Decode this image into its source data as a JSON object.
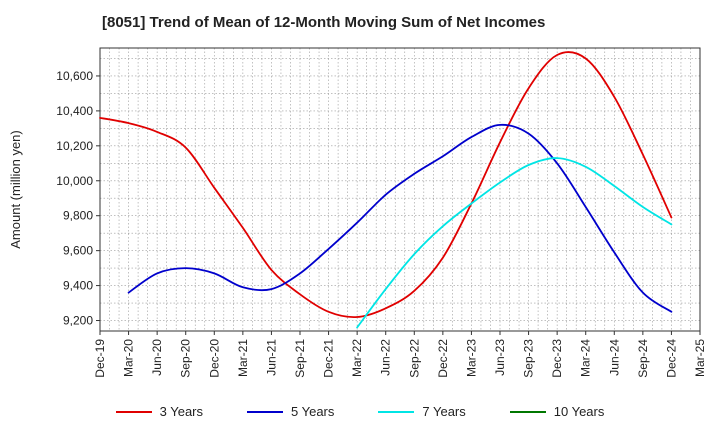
{
  "title": "[8051]  Trend of Mean of 12-Month Moving Sum of Net Incomes",
  "chart_data": {
    "type": "line",
    "title": "[8051]  Trend of Mean of 12-Month Moving Sum of Net Incomes",
    "xlabel": "",
    "ylabel": "Amount (million yen)",
    "x": [
      "Dec-19",
      "Mar-20",
      "Jun-20",
      "Sep-20",
      "Dec-20",
      "Mar-21",
      "Jun-21",
      "Sep-21",
      "Dec-21",
      "Mar-22",
      "Jun-22",
      "Sep-22",
      "Dec-22",
      "Mar-23",
      "Jun-23",
      "Sep-23",
      "Dec-23",
      "Mar-24",
      "Jun-24",
      "Sep-24",
      "Dec-24",
      "Mar-25"
    ],
    "ylim": [
      9140,
      10760
    ],
    "yticks": [
      9200,
      9400,
      9600,
      9800,
      10000,
      10200,
      10400,
      10600
    ],
    "ytick_labels": [
      "9,200",
      "9,400",
      "9,600",
      "9,800",
      "10,000",
      "10,200",
      "10,400",
      "10,600"
    ],
    "grid": true,
    "legend_position": "bottom",
    "series": [
      {
        "name": "3 Years",
        "color": "#e00000",
        "values": [
          10360,
          10330,
          10280,
          10190,
          9960,
          9730,
          9490,
          9350,
          9250,
          9220,
          9270,
          9370,
          9560,
          9870,
          10220,
          10530,
          10720,
          10700,
          10480,
          10150,
          9790,
          null
        ]
      },
      {
        "name": "5 Years",
        "color": "#0000cc",
        "values": [
          null,
          9360,
          9470,
          9500,
          9470,
          9390,
          9380,
          9470,
          9610,
          9760,
          9920,
          10040,
          10140,
          10250,
          10320,
          10270,
          10100,
          9850,
          9590,
          9360,
          9250,
          null
        ]
      },
      {
        "name": "7 Years",
        "color": "#00e5e5",
        "values": [
          null,
          null,
          null,
          null,
          null,
          null,
          null,
          null,
          null,
          9160,
          9380,
          9580,
          9740,
          9870,
          9990,
          10090,
          10130,
          10080,
          9970,
          9850,
          9750,
          null
        ]
      },
      {
        "name": "10 Years",
        "color": "#007700",
        "values": [
          null,
          null,
          null,
          null,
          null,
          null,
          null,
          null,
          null,
          null,
          null,
          null,
          null,
          null,
          null,
          null,
          null,
          null,
          null,
          null,
          null,
          null
        ]
      }
    ]
  }
}
